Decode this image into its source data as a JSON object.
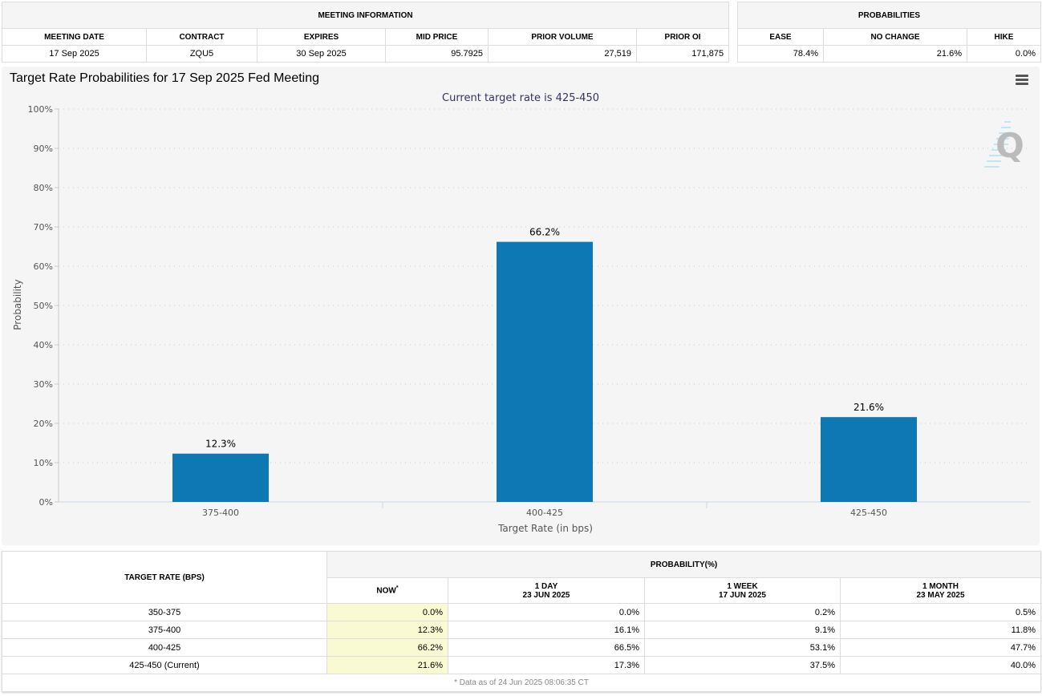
{
  "meeting_info": {
    "title": "MEETING INFORMATION",
    "headers": [
      "MEETING DATE",
      "CONTRACT",
      "EXPIRES",
      "MID PRICE",
      "PRIOR VOLUME",
      "PRIOR OI"
    ],
    "values": [
      "17 Sep 2025",
      "ZQU5",
      "30 Sep 2025",
      "95.7925",
      "27,519",
      "171,875"
    ]
  },
  "probabilities": {
    "title": "PROBABILITIES",
    "headers": [
      "EASE",
      "NO CHANGE",
      "HIKE"
    ],
    "values": [
      "78.4%",
      "21.6%",
      "0.0%"
    ]
  },
  "chart_data": {
    "type": "bar",
    "title": "Target Rate Probabilities for 17 Sep 2025 Fed Meeting",
    "subtitle": "Current target rate is 425-450",
    "categories": [
      "375-400",
      "400-425",
      "425-450"
    ],
    "values": [
      12.3,
      66.2,
      21.6
    ],
    "data_labels": [
      "12.3%",
      "66.2%",
      "21.6%"
    ],
    "xlabel": "Target Rate (in bps)",
    "ylabel": "Probability",
    "ylim": [
      0,
      100
    ],
    "yticks": [
      "0%",
      "10%",
      "20%",
      "30%",
      "40%",
      "50%",
      "60%",
      "70%",
      "80%",
      "90%",
      "100%"
    ],
    "grid": true,
    "bar_color": "#0e78b4"
  },
  "rate_table": {
    "col_header": "TARGET RATE (BPS)",
    "group_header": "PROBABILITY(%)",
    "sub_headers": [
      {
        "l1": "NOW",
        "l2": ""
      },
      {
        "l1": "1 DAY",
        "l2": "23 JUN 2025"
      },
      {
        "l1": "1 WEEK",
        "l2": "17 JUN 2025"
      },
      {
        "l1": "1 MONTH",
        "l2": "23 MAY 2025"
      }
    ],
    "now_marker": "*",
    "rows": [
      [
        "350-375",
        "0.0%",
        "0.0%",
        "0.2%",
        "0.5%"
      ],
      [
        "375-400",
        "12.3%",
        "16.1%",
        "9.1%",
        "11.8%"
      ],
      [
        "400-425",
        "66.2%",
        "66.5%",
        "53.1%",
        "47.7%"
      ],
      [
        "425-450 (Current)",
        "21.6%",
        "17.3%",
        "37.5%",
        "40.0%"
      ]
    ],
    "footnote": "* Data as of 24 Jun 2025 08:06:35 CT"
  }
}
